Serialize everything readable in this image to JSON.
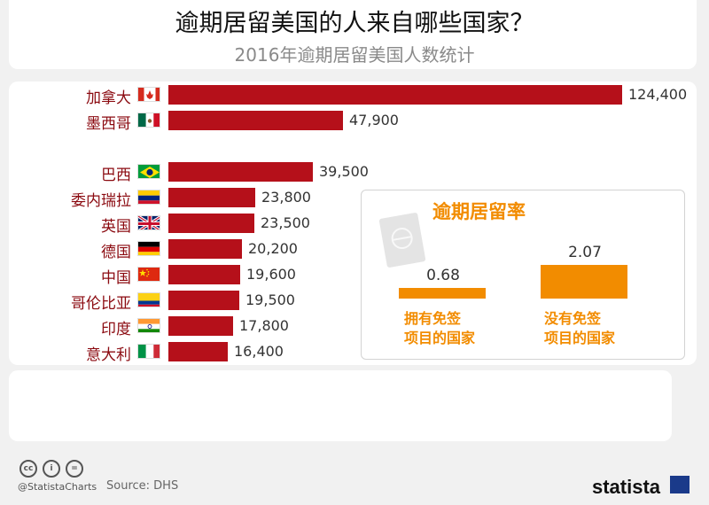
{
  "header": {
    "title": "逾期居留美国的人来自哪些国家？",
    "subtitle": "2016年逾期居留美国人数统计"
  },
  "chart_data": {
    "type": "bar",
    "orientation": "horizontal",
    "title": "逾期居留美国的人来自哪些国家？",
    "subtitle": "2016年逾期居留美国人数统计",
    "categories": [
      "加拿大",
      "墨西哥",
      "巴西",
      "委内瑞拉",
      "英国",
      "德国",
      "中国",
      "哥伦比亚",
      "印度",
      "意大利"
    ],
    "values": [
      124400,
      47900,
      39500,
      23800,
      23500,
      20200,
      19600,
      19500,
      17800,
      16400
    ],
    "value_labels": [
      "124,400",
      "47,900",
      "39,500",
      "23,800",
      "23,500",
      "20,200",
      "19,600",
      "19,500",
      "17,800",
      "16,400"
    ],
    "flag_icons": [
      "canada-flag-icon",
      "mexico-flag-icon",
      "brazil-flag-icon",
      "venezuela-flag-icon",
      "uk-flag-icon",
      "germany-flag-icon",
      "china-flag-icon",
      "colombia-flag-icon",
      "india-flag-icon",
      "italy-flag-icon"
    ],
    "bar_color": "#b5101a",
    "xlim": [
      0,
      124400
    ]
  },
  "inset": {
    "title": "逾期居留率",
    "icon": "passport-icon",
    "bar_color": "#f28c00",
    "items": [
      {
        "value": 0.68,
        "value_label": "0.68",
        "caption_line1": "拥有免签",
        "caption_line2": "项目的国家"
      },
      {
        "value": 2.07,
        "value_label": "2.07",
        "caption_line1": "没有免签",
        "caption_line2": "项目的国家"
      }
    ]
  },
  "footer": {
    "icons": [
      "cc-icon",
      "by-icon",
      "nd-icon"
    ],
    "cc_labels": [
      "cc",
      "i",
      "="
    ],
    "handle": "@StatistaCharts",
    "source": "Source: DHS",
    "brand": "statista"
  }
}
